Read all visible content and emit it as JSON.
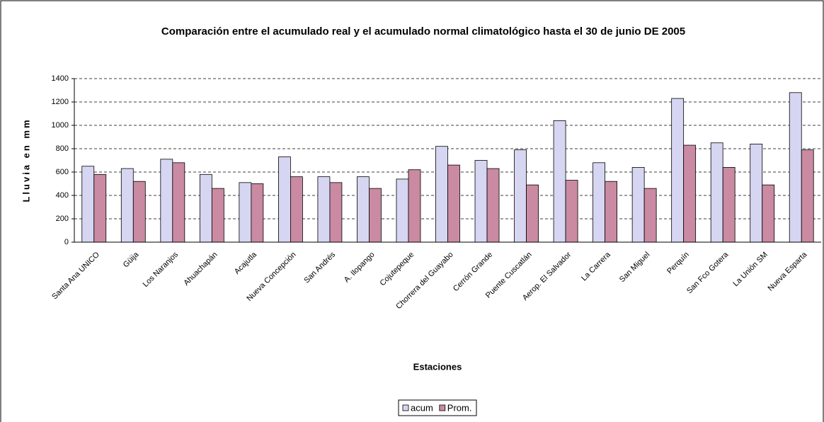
{
  "chart_data": {
    "type": "bar",
    "title": "Comparación entre el acumulado real y el acumulado normal climatológico hasta el 30 de junio DE 2005",
    "x_label": "Estaciones",
    "y_label": "Lluvia en mm",
    "categories": [
      "Santa Ana UNICO",
      "Güija",
      "Los Naranjos",
      "Ahuachapán",
      "Acajutla",
      "Nueva Concepción",
      "San Andrés",
      "A. Ilopango",
      "Cojutepeque",
      "Chorrera del Guayabo",
      "Cerrón Grande",
      "Puente Cuscatlán",
      "Aerop. El Salvador",
      "La Carrera",
      "San Miguel",
      "Perquín",
      "San Fco Gotera",
      "La Unión SM",
      "Nueva Esparta"
    ],
    "series": [
      {
        "name": "acum",
        "color": "#d6d6f2",
        "values": [
          650,
          630,
          710,
          580,
          510,
          730,
          560,
          560,
          540,
          820,
          700,
          790,
          1040,
          680,
          640,
          1230,
          850,
          840,
          1280
        ]
      },
      {
        "name": "Prom.",
        "color": "#c98aa2",
        "values": [
          580,
          520,
          680,
          460,
          500,
          560,
          510,
          460,
          620,
          660,
          630,
          490,
          530,
          520,
          460,
          830,
          640,
          490,
          790
        ]
      }
    ],
    "ylim": [
      0,
      1400
    ],
    "yticks": [
      0,
      200,
      400,
      600,
      800,
      1000,
      1200,
      1400
    ],
    "grid": true,
    "legend": "bottom"
  }
}
